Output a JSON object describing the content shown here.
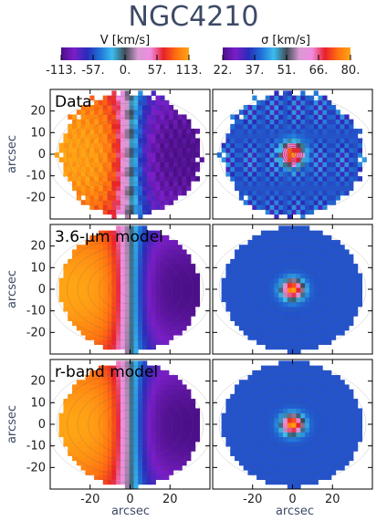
{
  "chart_data": {
    "type": "heatmap",
    "title": "NGC4210",
    "colorbars": [
      {
        "label": "V [km/s]",
        "ticks": [
          "-113.",
          "-57.",
          "0.",
          "57.",
          "113."
        ],
        "range": [
          -113,
          113
        ],
        "colors": [
          "#4b0f88",
          "#7a1ec8",
          "#2a2bb8",
          "#1f6fd6",
          "#3cbcee",
          "#3e4b55",
          "#d79ad2",
          "#f08be0",
          "#e8202a",
          "#ff7010",
          "#ffa515"
        ]
      },
      {
        "label": "σ [km/s]",
        "ticks": [
          "22.",
          "37.",
          "51.",
          "66.",
          "80."
        ],
        "range": [
          22,
          80
        ],
        "colors": [
          "#4b0f88",
          "#7a1ec8",
          "#2a2bb8",
          "#1f6fd6",
          "#3cbcee",
          "#3e4b55",
          "#d79ad2",
          "#f08be0",
          "#e8202a",
          "#ff7010",
          "#ffa515"
        ]
      }
    ],
    "panel_labels": [
      "Data",
      "3.6-μm model",
      "r-band model"
    ],
    "ylabel": "arcsec",
    "xlabel": "arcsec",
    "yticks": [
      "20",
      "10",
      "0",
      "-10",
      "-20"
    ],
    "xticks": [
      "-20",
      "0",
      "20"
    ],
    "xlim": [
      -40,
      40
    ],
    "ylim": [
      -30,
      30
    ],
    "v_max": 113,
    "sigma_center": 80,
    "sigma_outer": 37
  }
}
